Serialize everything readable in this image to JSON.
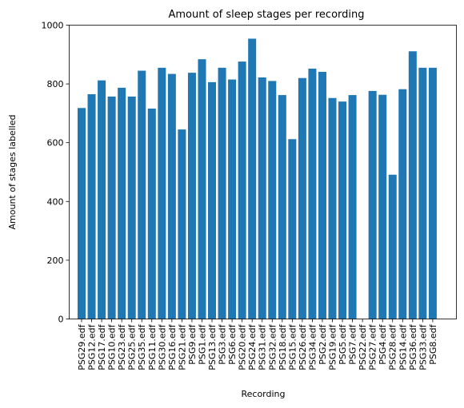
{
  "chart_data": {
    "type": "bar",
    "title": "Amount of sleep stages per recording",
    "xlabel": "Recording",
    "ylabel": "Amount of stages labelled",
    "ylim": [
      0,
      1000
    ],
    "yticks": [
      0,
      200,
      400,
      600,
      800,
      1000
    ],
    "grid": false,
    "bar_color": "#1f77b4",
    "categories": [
      "PSG29.edf",
      "PSG12.edf",
      "PSG17.edf",
      "PSG10.edf",
      "PSG23.edf",
      "PSG25.edf",
      "PSG35.edf",
      "PSG11.edf",
      "PSG30.edf",
      "PSG16.edf",
      "PSG21.edf",
      "PSG9.edf",
      "PSG1.edf",
      "PSG13.edf",
      "PSG3.edf",
      "PSG6.edf",
      "PSG20.edf",
      "PSG24.edf",
      "PSG31.edf",
      "PSG32.edf",
      "PSG18.edf",
      "PSG15.edf",
      "PSG26.edf",
      "PSG34.edf",
      "PSG2.edf",
      "PSG19.edf",
      "PSG5.edf",
      "PSG7.edf",
      "PSG22.edf",
      "PSG27.edf",
      "PSG4.edf",
      "PSG28.edf",
      "PSG14.edf",
      "PSG36.edf",
      "PSG33.edf",
      "PSG8.edf"
    ],
    "values": [
      718,
      765,
      812,
      757,
      787,
      757,
      845,
      716,
      855,
      834,
      645,
      838,
      884,
      806,
      855,
      815,
      876,
      954,
      822,
      810,
      762,
      612,
      820,
      852,
      841,
      752,
      740,
      762,
      0,
      776,
      763,
      491,
      782,
      911,
      855,
      855
    ]
  }
}
